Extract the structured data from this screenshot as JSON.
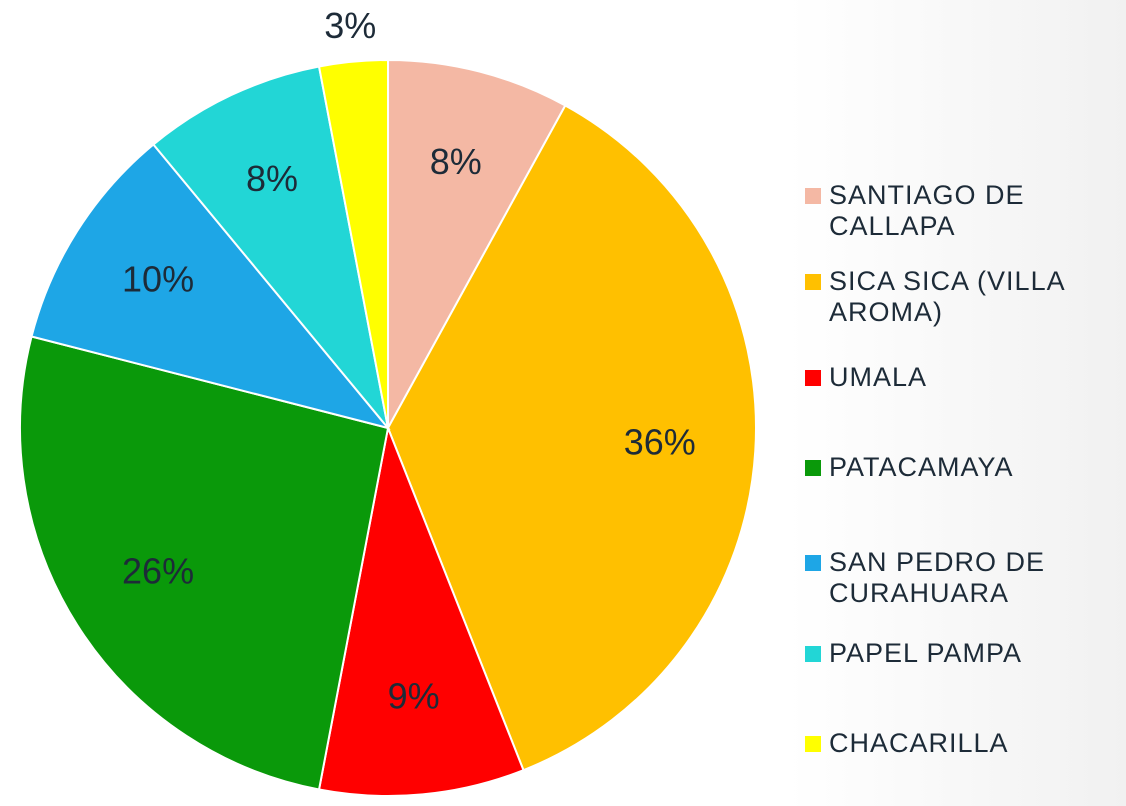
{
  "chart_data": {
    "type": "pie",
    "categories": [
      "SANTIAGO DE CALLAPA",
      "SICA SICA (VILLA AROMA)",
      "UMALA",
      "PATACAMAYA",
      "SAN PEDRO DE CURAHUARA",
      "PAPEL PAMPA",
      "CHACARILLA"
    ],
    "values": [
      8,
      36,
      9,
      26,
      10,
      8,
      3
    ],
    "value_labels": [
      "8%",
      "36%",
      "9%",
      "26%",
      "10%",
      "8%",
      "3%"
    ],
    "colors": [
      "#f4b8a4",
      "#ffc000",
      "#ff0000",
      "#0a990a",
      "#1ea6e6",
      "#22d6d6",
      "#ffff00"
    ],
    "legend": "right"
  }
}
